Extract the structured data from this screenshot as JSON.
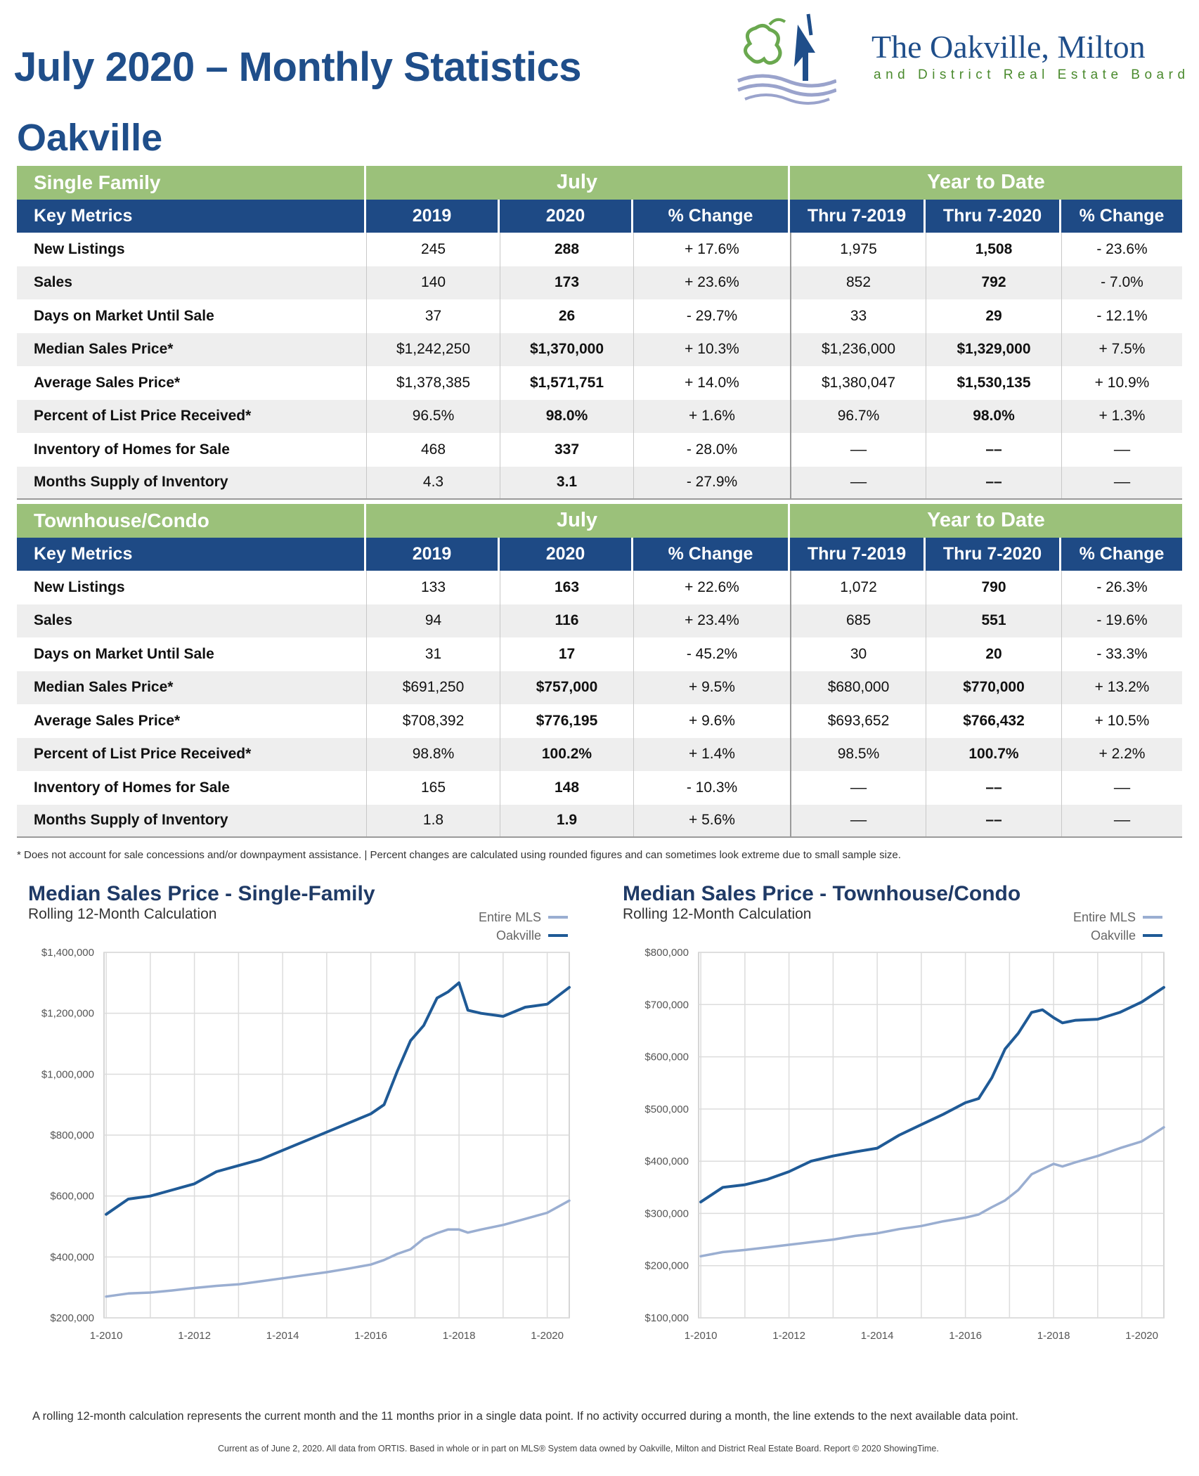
{
  "header": {
    "title": "July 2020 – Monthly Statistics",
    "city": "Oakville"
  },
  "logo": {
    "name": "The Oakville, Milton",
    "subtitle": "and District Real Estate Board"
  },
  "colors": {
    "navy": "#1e4a85",
    "green": "#9bc17a",
    "line_oakville": "#1f5a96",
    "line_mls": "#9aaed1"
  },
  "tables": [
    {
      "section": "Single Family",
      "period1": "July",
      "period2": "Year to Date",
      "columns": [
        "Key Metrics",
        "2019",
        "2020",
        "% Change",
        "Thru 7-2019",
        "Thru 7-2020",
        "% Change"
      ],
      "rows": [
        [
          "New Listings",
          "245",
          "288",
          "+ 17.6%",
          "1,975",
          "1,508",
          "- 23.6%"
        ],
        [
          "Sales",
          "140",
          "173",
          "+ 23.6%",
          "852",
          "792",
          "- 7.0%"
        ],
        [
          "Days on Market Until Sale",
          "37",
          "26",
          "- 29.7%",
          "33",
          "29",
          "- 12.1%"
        ],
        [
          "Median Sales Price*",
          "$1,242,250",
          "$1,370,000",
          "+ 10.3%",
          "$1,236,000",
          "$1,329,000",
          "+ 7.5%"
        ],
        [
          "Average Sales Price*",
          "$1,378,385",
          "$1,571,751",
          "+ 14.0%",
          "$1,380,047",
          "$1,530,135",
          "+ 10.9%"
        ],
        [
          "Percent of List Price Received*",
          "96.5%",
          "98.0%",
          "+ 1.6%",
          "96.7%",
          "98.0%",
          "+ 1.3%"
        ],
        [
          "Inventory of Homes for Sale",
          "468",
          "337",
          "- 28.0%",
          "––",
          "––",
          "––"
        ],
        [
          "Months Supply of Inventory",
          "4.3",
          "3.1",
          "- 27.9%",
          "––",
          "––",
          "––"
        ]
      ]
    },
    {
      "section": "Townhouse/Condo",
      "period1": "July",
      "period2": "Year to Date",
      "columns": [
        "Key Metrics",
        "2019",
        "2020",
        "% Change",
        "Thru 7-2019",
        "Thru 7-2020",
        "% Change"
      ],
      "rows": [
        [
          "New Listings",
          "133",
          "163",
          "+ 22.6%",
          "1,072",
          "790",
          "- 26.3%"
        ],
        [
          "Sales",
          "94",
          "116",
          "+ 23.4%",
          "685",
          "551",
          "- 19.6%"
        ],
        [
          "Days on Market Until Sale",
          "31",
          "17",
          "- 45.2%",
          "30",
          "20",
          "- 33.3%"
        ],
        [
          "Median Sales Price*",
          "$691,250",
          "$757,000",
          "+ 9.5%",
          "$680,000",
          "$770,000",
          "+ 13.2%"
        ],
        [
          "Average Sales Price*",
          "$708,392",
          "$776,195",
          "+ 9.6%",
          "$693,652",
          "$766,432",
          "+ 10.5%"
        ],
        [
          "Percent of List Price Received*",
          "98.8%",
          "100.2%",
          "+ 1.4%",
          "98.5%",
          "100.7%",
          "+ 2.2%"
        ],
        [
          "Inventory of Homes for Sale",
          "165",
          "148",
          "- 10.3%",
          "––",
          "––",
          "––"
        ],
        [
          "Months Supply of Inventory",
          "1.8",
          "1.9",
          "+ 5.6%",
          "––",
          "––",
          "––"
        ]
      ]
    }
  ],
  "footnote": "* Does not account for sale concessions and/or downpayment assistance. | Percent changes are calculated using rounded figures and can sometimes look extreme due to small sample size.",
  "chart_data": [
    {
      "type": "line",
      "title": "Median Sales Price - Single-Family",
      "subtitle": "Rolling 12-Month Calculation",
      "x": [
        2010.0,
        2010.5,
        2011.0,
        2011.5,
        2012.0,
        2012.5,
        2013.0,
        2013.5,
        2014.0,
        2014.5,
        2015.0,
        2015.5,
        2016.0,
        2016.3,
        2016.6,
        2016.9,
        2017.2,
        2017.5,
        2017.75,
        2018.0,
        2018.2,
        2018.5,
        2019.0,
        2019.5,
        2020.0,
        2020.5
      ],
      "xlim": [
        2009.95,
        2020.5
      ],
      "xticks": [
        "1-2010",
        "1-2012",
        "1-2014",
        "1-2016",
        "1-2018",
        "1-2020"
      ],
      "xtick_values": [
        2010,
        2012,
        2014,
        2016,
        2018,
        2020
      ],
      "yticks": [
        "$200,000",
        "$400,000",
        "$600,000",
        "$800,000",
        "$1,000,000",
        "$1,200,000",
        "$1,400,000"
      ],
      "ylim": [
        200000,
        1400000
      ],
      "series": [
        {
          "name": "Entire MLS",
          "color": "#9aaed1",
          "values": [
            270000,
            280000,
            283000,
            290000,
            298000,
            305000,
            310000,
            320000,
            330000,
            340000,
            350000,
            362000,
            375000,
            390000,
            410000,
            425000,
            460000,
            478000,
            490000,
            490000,
            480000,
            490000,
            505000,
            525000,
            545000,
            585000
          ]
        },
        {
          "name": "Oakville",
          "color": "#1f5a96",
          "values": [
            540000,
            590000,
            600000,
            620000,
            640000,
            680000,
            700000,
            720000,
            750000,
            780000,
            810000,
            840000,
            870000,
            900000,
            1010000,
            1110000,
            1160000,
            1250000,
            1270000,
            1300000,
            1210000,
            1200000,
            1190000,
            1220000,
            1230000,
            1285000
          ]
        }
      ],
      "legend": "top-right"
    },
    {
      "type": "line",
      "title": "Median Sales Price - Townhouse/Condo",
      "subtitle": "Rolling 12-Month Calculation",
      "x": [
        2010.0,
        2010.5,
        2011.0,
        2011.5,
        2012.0,
        2012.5,
        2013.0,
        2013.5,
        2014.0,
        2014.5,
        2015.0,
        2015.5,
        2016.0,
        2016.3,
        2016.6,
        2016.9,
        2017.2,
        2017.5,
        2017.75,
        2018.0,
        2018.2,
        2018.5,
        2019.0,
        2019.5,
        2020.0,
        2020.5
      ],
      "xlim": [
        2009.95,
        2020.5
      ],
      "xticks": [
        "1-2010",
        "1-2012",
        "1-2014",
        "1-2016",
        "1-2018",
        "1-2020"
      ],
      "xtick_values": [
        2010,
        2012,
        2014,
        2016,
        2018,
        2020
      ],
      "yticks": [
        "$100,000",
        "$200,000",
        "$300,000",
        "$400,000",
        "$500,000",
        "$600,000",
        "$700,000",
        "$800,000"
      ],
      "ylim": [
        100000,
        800000
      ],
      "series": [
        {
          "name": "Entire MLS",
          "color": "#9aaed1",
          "values": [
            218000,
            226000,
            230000,
            235000,
            240000,
            245000,
            250000,
            257000,
            262000,
            270000,
            276000,
            285000,
            292000,
            298000,
            312000,
            325000,
            345000,
            375000,
            385000,
            395000,
            390000,
            398000,
            410000,
            425000,
            438000,
            465000
          ]
        },
        {
          "name": "Oakville",
          "color": "#1f5a96",
          "values": [
            322000,
            350000,
            355000,
            365000,
            380000,
            400000,
            410000,
            418000,
            425000,
            450000,
            470000,
            490000,
            512000,
            520000,
            560000,
            615000,
            645000,
            685000,
            690000,
            675000,
            665000,
            670000,
            672000,
            685000,
            705000,
            733000
          ]
        }
      ],
      "legend": "top-right"
    }
  ],
  "bottom_note": "A rolling 12-month calculation represents the current month and the 11 months prior in a single data point. If no activity occurred during a month, the line extends to the next available data point.",
  "credit": "Current as of June 2, 2020. All data from ORTIS. Based in whole or in part on MLS® System data owned by Oakville, Milton and District Real Estate Board. Report © 2020 ShowingTime."
}
